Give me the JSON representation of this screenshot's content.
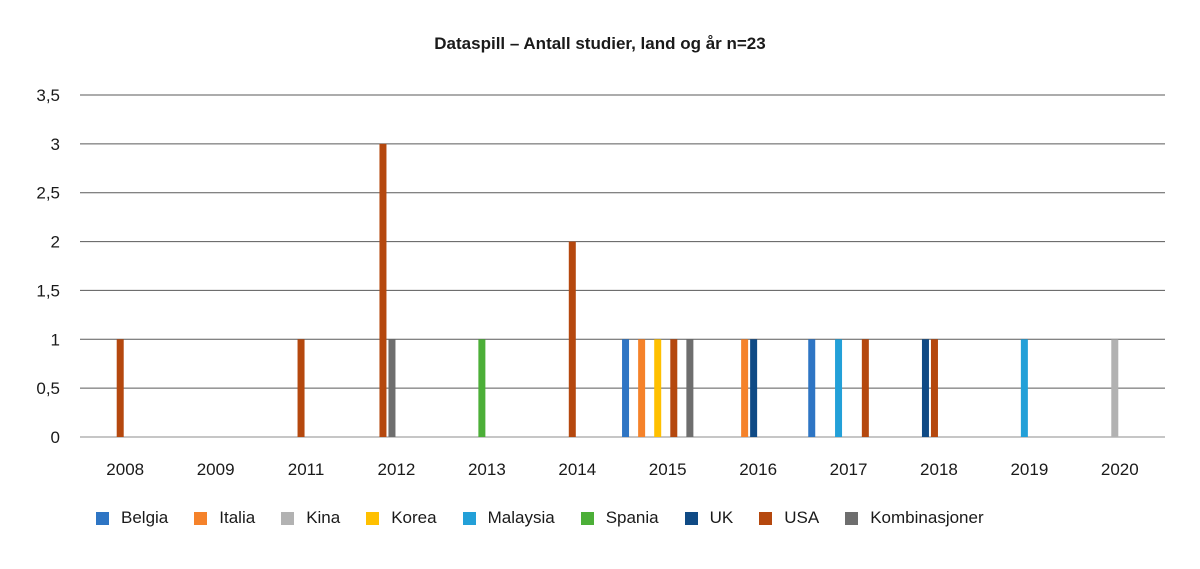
{
  "chart_data": {
    "type": "bar",
    "title": "Dataspill – Antall studier, land og år n=23",
    "xlabel": "",
    "ylabel": "",
    "categories": [
      "2008",
      "2009",
      "2011",
      "2012",
      "2013",
      "2014",
      "2015",
      "2016",
      "2017",
      "2018",
      "2019",
      "2020"
    ],
    "ylim": [
      0,
      3.5
    ],
    "yticks": [
      "0",
      "0,5",
      "1",
      "1,5",
      "2",
      "2,5",
      "3",
      "3,5"
    ],
    "ytick_values": [
      0,
      0.5,
      1,
      1.5,
      2,
      2.5,
      3,
      3.5
    ],
    "grid": true,
    "legend_position": "bottom",
    "series": [
      {
        "name": "Belgia",
        "color": "#2e75c4",
        "values": [
          0,
          0,
          0,
          0,
          0,
          0,
          1,
          0,
          1,
          0,
          0,
          0
        ]
      },
      {
        "name": "Italia",
        "color": "#f5822a",
        "values": [
          0,
          0,
          0,
          0,
          0,
          0,
          1,
          1,
          0,
          0,
          0,
          0
        ]
      },
      {
        "name": "Kina",
        "color": "#b2b2b2",
        "values": [
          0,
          0,
          0,
          0,
          0,
          0,
          0,
          0,
          0,
          0,
          0,
          1
        ]
      },
      {
        "name": "Korea",
        "color": "#ffc000",
        "values": [
          0,
          0,
          0,
          0,
          0,
          0,
          1,
          0,
          0,
          0,
          0,
          0
        ]
      },
      {
        "name": "Malaysia",
        "color": "#23a0d8",
        "values": [
          0,
          0,
          0,
          0,
          0,
          0,
          0,
          0,
          1,
          0,
          1,
          0
        ]
      },
      {
        "name": "Spania",
        "color": "#4caf38",
        "values": [
          0,
          0,
          0,
          0,
          1,
          0,
          0,
          0,
          0,
          0,
          0,
          0
        ]
      },
      {
        "name": "UK",
        "color": "#0f4a85",
        "values": [
          0,
          0,
          0,
          0,
          0,
          0,
          0,
          1,
          0,
          1,
          0,
          0
        ]
      },
      {
        "name": "USA",
        "color": "#b5480e",
        "values": [
          1,
          0,
          1,
          3,
          0,
          2,
          1,
          0,
          1,
          1,
          0,
          0
        ]
      },
      {
        "name": "Kombinasjoner",
        "color": "#6e6e6e",
        "values": [
          0,
          0,
          0,
          1,
          0,
          0,
          1,
          0,
          0,
          0,
          0,
          0
        ]
      }
    ]
  }
}
